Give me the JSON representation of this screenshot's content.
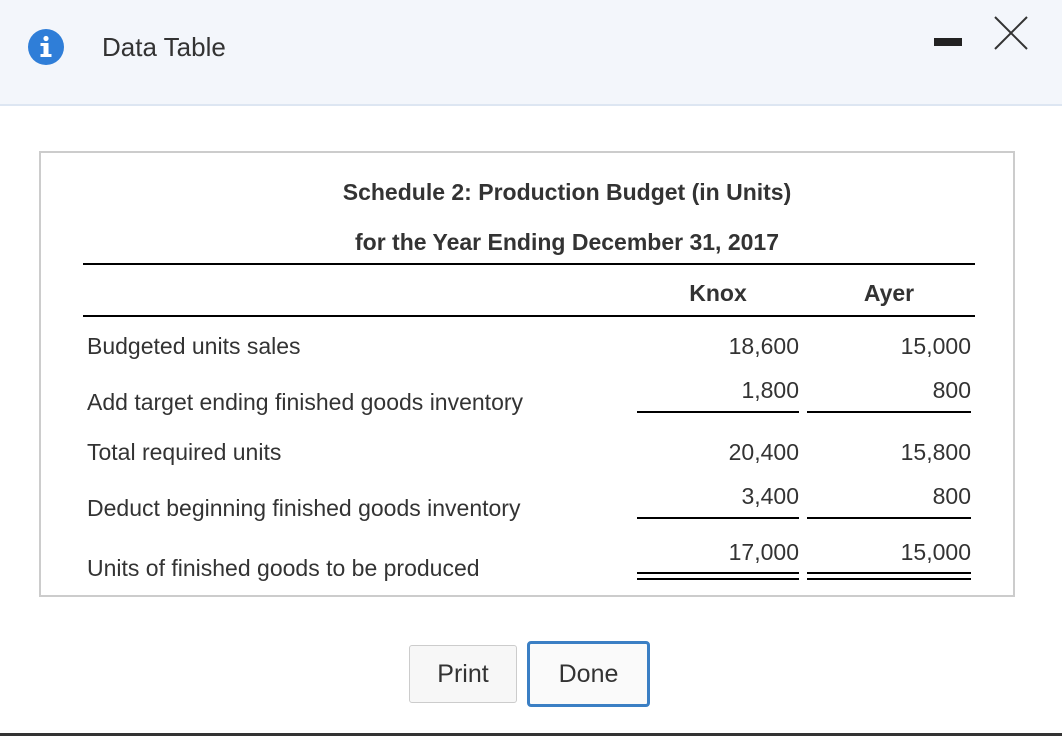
{
  "window": {
    "title": "Data Table",
    "icons": {
      "info": "info-icon",
      "minimize": "minimize-icon",
      "close": "close-icon"
    },
    "accent_color": "#2f7ed8"
  },
  "schedule": {
    "title_line1": "Schedule 2: Production Budget (in Units)",
    "title_line2": "for the Year Ending December 31, 2017",
    "columns": [
      "Knox",
      "Ayer"
    ],
    "rows": [
      {
        "label": "Budgeted units sales",
        "knox": "18,600",
        "ayer": "15,000"
      },
      {
        "label": "Add target ending finished goods inventory",
        "knox": "1,800",
        "ayer": "800"
      },
      {
        "label": "Total required units",
        "knox": "20,400",
        "ayer": "15,800"
      },
      {
        "label": "Deduct beginning finished goods inventory",
        "knox": "3,400",
        "ayer": "800"
      },
      {
        "label": "Units of finished goods to be produced",
        "knox": "17,000",
        "ayer": "15,000"
      }
    ]
  },
  "buttons": {
    "print": "Print",
    "done": "Done"
  }
}
